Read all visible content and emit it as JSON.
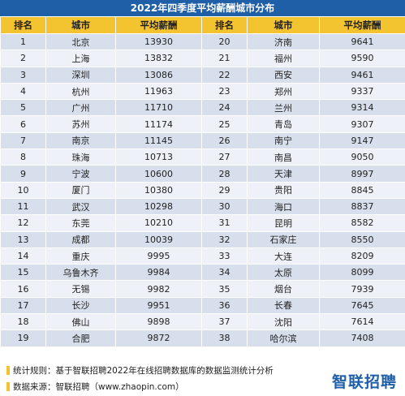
{
  "title": "2022年四季度平均薪酬城市分布",
  "headers": [
    "排名",
    "城市",
    "平均薪酬",
    "排名",
    "城市",
    "平均薪酬"
  ],
  "rows": [
    {
      "rank": "1",
      "city": "北京",
      "salary": "13930",
      "rank2": "20",
      "city2": "济南",
      "salary2": "9641"
    },
    {
      "rank": "2",
      "city": "上海",
      "salary": "13832",
      "rank2": "21",
      "city2": "福州",
      "salary2": "9590"
    },
    {
      "rank": "3",
      "city": "深圳",
      "salary": "13086",
      "rank2": "22",
      "city2": "西安",
      "salary2": "9461"
    },
    {
      "rank": "4",
      "city": "杭州",
      "salary": "11963",
      "rank2": "23",
      "city2": "郑州",
      "salary2": "9337"
    },
    {
      "rank": "5",
      "city": "广州",
      "salary": "11710",
      "rank2": "24",
      "city2": "兰州",
      "salary2": "9314"
    },
    {
      "rank": "6",
      "city": "苏州",
      "salary": "11174",
      "rank2": "25",
      "city2": "青岛",
      "salary2": "9307"
    },
    {
      "rank": "7",
      "city": "南京",
      "salary": "11145",
      "rank2": "26",
      "city2": "南宁",
      "salary2": "9147"
    },
    {
      "rank": "8",
      "city": "珠海",
      "salary": "10713",
      "rank2": "27",
      "city2": "南昌",
      "salary2": "9050"
    },
    {
      "rank": "9",
      "city": "宁波",
      "salary": "10600",
      "rank2": "28",
      "city2": "天津",
      "salary2": "8997"
    },
    {
      "rank": "10",
      "city": "厦门",
      "salary": "10380",
      "rank2": "29",
      "city2": "贵阳",
      "salary2": "8845"
    },
    {
      "rank": "11",
      "city": "武汉",
      "salary": "10298",
      "rank2": "30",
      "city2": "海口",
      "salary2": "8837"
    },
    {
      "rank": "12",
      "city": "东莞",
      "salary": "10210",
      "rank2": "31",
      "city2": "昆明",
      "salary2": "8582"
    },
    {
      "rank": "13",
      "city": "成都",
      "salary": "10039",
      "rank2": "32",
      "city2": "石家庄",
      "salary2": "8550"
    },
    {
      "rank": "14",
      "city": "重庆",
      "salary": "9995",
      "rank2": "33",
      "city2": "大连",
      "salary2": "8209"
    },
    {
      "rank": "15",
      "city": "乌鲁木齐",
      "salary": "9984",
      "rank2": "34",
      "city2": "太原",
      "salary2": "8099"
    },
    {
      "rank": "16",
      "city": "无锡",
      "salary": "9982",
      "rank2": "35",
      "city2": "烟台",
      "salary2": "7939"
    },
    {
      "rank": "17",
      "city": "长沙",
      "salary": "9951",
      "rank2": "36",
      "city2": "长春",
      "salary2": "7645"
    },
    {
      "rank": "18",
      "city": "佛山",
      "salary": "9898",
      "rank2": "37",
      "city2": "沈阳",
      "salary2": "7614"
    },
    {
      "rank": "19",
      "city": "合肥",
      "salary": "9872",
      "rank2": "38",
      "city2": "哈尔滨",
      "salary2": "7408"
    }
  ],
  "footer": {
    "note1": "统计规则：基于智联招聘2022年在线招聘数据库的数据监测统计分析",
    "note2": "数据来源：智联招聘（www.zhaopin.com）",
    "logo": "智联招聘"
  },
  "colors": {
    "title_bg": "#1f5fa8",
    "header_bg": "#f4c430",
    "row_odd": "#d7dfec",
    "row_even": "#eef2f8",
    "logo": "#1f5fa8"
  }
}
